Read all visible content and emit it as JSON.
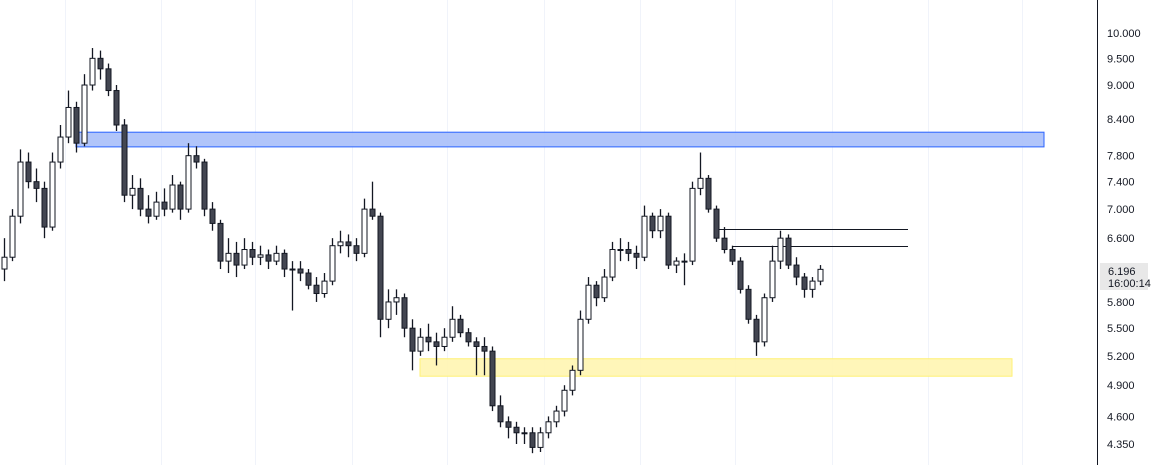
{
  "chart_data": {
    "type": "candlestick",
    "y_scale": "log",
    "grid": {
      "vertical": true,
      "horizontal": false
    },
    "y_ticks": [
      10.0,
      9.5,
      9.0,
      8.4,
      7.8,
      7.4,
      7.0,
      6.6,
      5.8,
      5.5,
      5.2,
      4.9,
      4.6,
      4.35
    ],
    "y_tick_labels": [
      "10.000",
      "9.500",
      "9.000",
      "8.400",
      "7.800",
      "7.400",
      "7.000",
      "6.600",
      "5.800",
      "5.500",
      "5.200",
      "4.900",
      "4.600",
      "4.350"
    ],
    "ylim": [
      4.26,
      10.4
    ],
    "last_price": {
      "value": 6.196,
      "label": "6.196",
      "countdown": "16:00:14"
    },
    "colors": {
      "up_body": "#ffffff",
      "down_body": "#434651",
      "outline": "#131722",
      "grid": "#f0f3fa",
      "resistance_zone": "#2962ff",
      "support_zone": "#fff176"
    },
    "zones": [
      {
        "name": "resistance",
        "from_bar": 9,
        "to_bar": 130,
        "top": 8.18,
        "bottom": 7.94,
        "fill": "#a8bffa",
        "stroke": "#2962ff"
      },
      {
        "name": "support",
        "from_bar": 52,
        "to_bar": 126,
        "top": 5.17,
        "bottom": 4.99,
        "fill": "#fff5b1",
        "stroke": "#fff176"
      }
    ],
    "levels": [
      {
        "from_bar": 89,
        "to_bar": 113,
        "price": 6.72
      },
      {
        "from_bar": 91,
        "to_bar": 113,
        "price": 6.5
      }
    ],
    "candles": [
      [
        6.2,
        6.6,
        6.05,
        6.35
      ],
      [
        6.35,
        7.0,
        6.3,
        6.9
      ],
      [
        6.9,
        7.9,
        6.8,
        7.7
      ],
      [
        7.7,
        7.85,
        7.3,
        7.4
      ],
      [
        7.4,
        7.6,
        7.1,
        7.3
      ],
      [
        7.3,
        7.4,
        6.6,
        6.75
      ],
      [
        6.75,
        7.85,
        6.7,
        7.7
      ],
      [
        7.7,
        8.3,
        7.6,
        8.1
      ],
      [
        8.1,
        8.9,
        8.0,
        8.6
      ],
      [
        8.6,
        8.7,
        7.85,
        8.0
      ],
      [
        8.0,
        9.2,
        7.95,
        9.0
      ],
      [
        9.0,
        9.7,
        8.9,
        9.5
      ],
      [
        9.5,
        9.65,
        9.1,
        9.3
      ],
      [
        9.3,
        9.4,
        8.8,
        8.9
      ],
      [
        8.9,
        9.0,
        8.2,
        8.3
      ],
      [
        8.3,
        8.4,
        7.1,
        7.2
      ],
      [
        7.2,
        7.5,
        7.0,
        7.3
      ],
      [
        7.3,
        7.45,
        6.9,
        7.0
      ],
      [
        7.0,
        7.2,
        6.8,
        6.9
      ],
      [
        6.9,
        7.25,
        6.85,
        7.1
      ],
      [
        7.1,
        7.3,
        6.9,
        7.0
      ],
      [
        7.0,
        7.5,
        6.95,
        7.35
      ],
      [
        7.35,
        7.4,
        6.85,
        7.0
      ],
      [
        7.0,
        8.0,
        6.95,
        7.8
      ],
      [
        7.8,
        7.95,
        7.6,
        7.7
      ],
      [
        7.7,
        7.75,
        6.9,
        7.0
      ],
      [
        7.0,
        7.1,
        6.7,
        6.8
      ],
      [
        6.8,
        6.85,
        6.2,
        6.3
      ],
      [
        6.3,
        6.6,
        6.15,
        6.4
      ],
      [
        6.4,
        6.55,
        6.1,
        6.25
      ],
      [
        6.25,
        6.6,
        6.2,
        6.45
      ],
      [
        6.45,
        6.55,
        6.25,
        6.35
      ],
      [
        6.35,
        6.5,
        6.25,
        6.38
      ],
      [
        6.38,
        6.45,
        6.2,
        6.3
      ],
      [
        6.3,
        6.5,
        6.25,
        6.4
      ],
      [
        6.4,
        6.45,
        6.1,
        6.2
      ],
      [
        6.2,
        6.3,
        5.7,
        6.2
      ],
      [
        6.2,
        6.3,
        6.05,
        6.15
      ],
      [
        6.15,
        6.2,
        5.95,
        6.0
      ],
      [
        6.0,
        6.1,
        5.8,
        5.9
      ],
      [
        5.9,
        6.15,
        5.85,
        6.05
      ],
      [
        6.05,
        6.6,
        6.0,
        6.5
      ],
      [
        6.5,
        6.7,
        6.4,
        6.55
      ],
      [
        6.55,
        6.65,
        6.35,
        6.5
      ],
      [
        6.5,
        6.6,
        6.3,
        6.4
      ],
      [
        6.4,
        7.15,
        6.35,
        7.0
      ],
      [
        7.0,
        7.4,
        6.85,
        6.9
      ],
      [
        6.9,
        6.95,
        5.4,
        5.6
      ],
      [
        5.6,
        5.95,
        5.5,
        5.8
      ],
      [
        5.8,
        5.95,
        5.65,
        5.85
      ],
      [
        5.85,
        5.9,
        5.4,
        5.5
      ],
      [
        5.5,
        5.6,
        5.05,
        5.25
      ],
      [
        5.25,
        5.5,
        5.2,
        5.4
      ],
      [
        5.4,
        5.55,
        5.25,
        5.35
      ],
      [
        5.35,
        5.45,
        5.1,
        5.3
      ],
      [
        5.3,
        5.5,
        5.25,
        5.4
      ],
      [
        5.4,
        5.75,
        5.35,
        5.6
      ],
      [
        5.6,
        5.65,
        5.4,
        5.45
      ],
      [
        5.45,
        5.5,
        5.3,
        5.35
      ],
      [
        5.35,
        5.4,
        5.0,
        5.3
      ],
      [
        5.3,
        5.4,
        5.0,
        5.25
      ],
      [
        5.25,
        5.3,
        4.65,
        4.7
      ],
      [
        4.7,
        4.8,
        4.5,
        4.55
      ],
      [
        4.55,
        4.6,
        4.4,
        4.5
      ],
      [
        4.5,
        4.55,
        4.35,
        4.45
      ],
      [
        4.45,
        4.5,
        4.35,
        4.45
      ],
      [
        4.45,
        4.5,
        4.27,
        4.32
      ],
      [
        4.32,
        4.5,
        4.28,
        4.45
      ],
      [
        4.45,
        4.6,
        4.4,
        4.55
      ],
      [
        4.55,
        4.7,
        4.5,
        4.65
      ],
      [
        4.65,
        4.9,
        4.6,
        4.85
      ],
      [
        4.85,
        5.1,
        4.8,
        5.05
      ],
      [
        5.05,
        5.7,
        5.0,
        5.6
      ],
      [
        5.6,
        6.1,
        5.55,
        6.0
      ],
      [
        6.0,
        6.05,
        5.75,
        5.85
      ],
      [
        5.85,
        6.2,
        5.8,
        6.1
      ],
      [
        6.1,
        6.55,
        6.05,
        6.45
      ],
      [
        6.45,
        6.6,
        6.3,
        6.45
      ],
      [
        6.45,
        6.55,
        6.3,
        6.4
      ],
      [
        6.4,
        6.5,
        6.2,
        6.35
      ],
      [
        6.35,
        7.05,
        6.3,
        6.9
      ],
      [
        6.9,
        6.95,
        6.6,
        6.7
      ],
      [
        6.7,
        7.0,
        6.6,
        6.9
      ],
      [
        6.9,
        6.95,
        6.2,
        6.25
      ],
      [
        6.25,
        6.35,
        6.15,
        6.3
      ],
      [
        6.3,
        6.4,
        6.0,
        6.3
      ],
      [
        6.3,
        7.4,
        6.25,
        7.3
      ],
      [
        7.3,
        7.85,
        7.2,
        7.45
      ],
      [
        7.45,
        7.5,
        6.95,
        7.0
      ],
      [
        7.0,
        7.05,
        6.55,
        6.6
      ],
      [
        6.6,
        6.75,
        6.4,
        6.45
      ],
      [
        6.45,
        6.5,
        6.25,
        6.3
      ],
      [
        6.3,
        6.35,
        5.9,
        5.95
      ],
      [
        5.95,
        6.0,
        5.55,
        5.6
      ],
      [
        5.6,
        5.65,
        5.2,
        5.35
      ],
      [
        5.35,
        5.9,
        5.3,
        5.85
      ],
      [
        5.85,
        6.5,
        5.8,
        6.3
      ],
      [
        6.3,
        6.7,
        6.2,
        6.6
      ],
      [
        6.6,
        6.65,
        6.2,
        6.25
      ],
      [
        6.25,
        6.35,
        6.0,
        6.1
      ],
      [
        6.1,
        6.15,
        5.85,
        5.95
      ],
      [
        5.95,
        6.1,
        5.85,
        6.05
      ],
      [
        6.05,
        6.25,
        6.0,
        6.196
      ]
    ]
  }
}
